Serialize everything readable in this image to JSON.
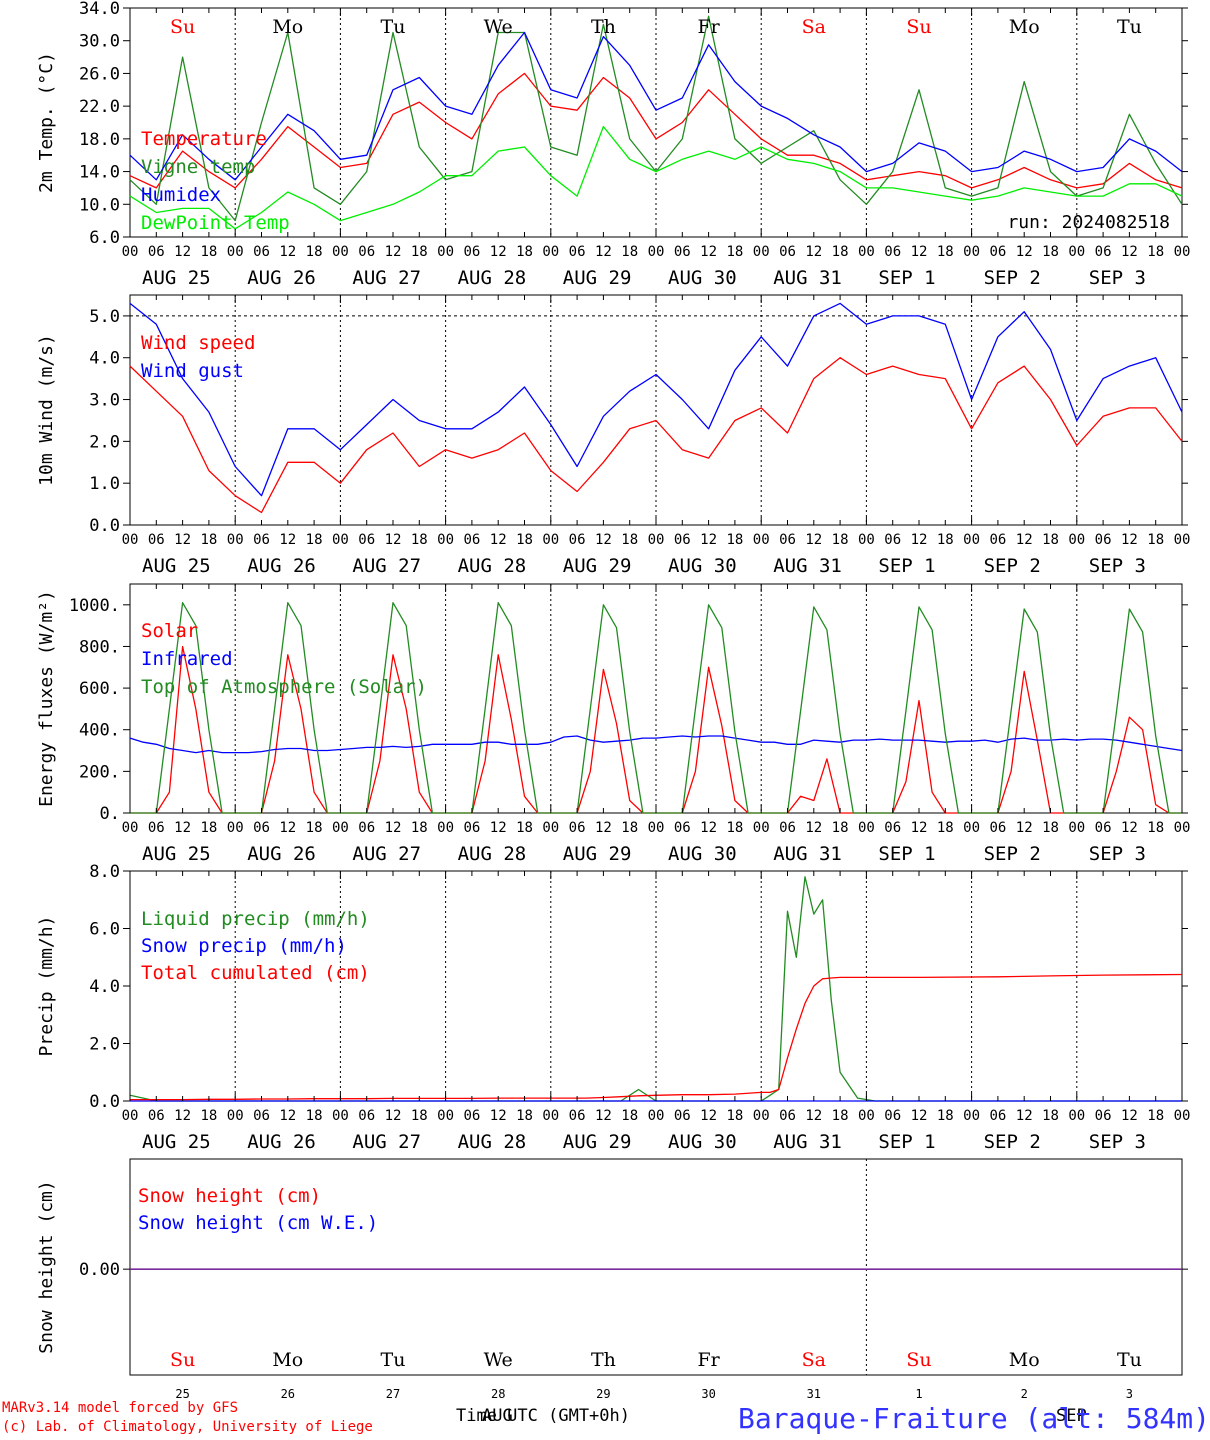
{
  "days": [
    "Su",
    "Mo",
    "Tu",
    "We",
    "Th",
    "Fr",
    "Sa",
    "Su",
    "Mo",
    "Tu"
  ],
  "day_colors": [
    "#ff0000",
    "#000000",
    "#000000",
    "#000000",
    "#000000",
    "#000000",
    "#ff0000",
    "#ff0000",
    "#000000",
    "#000000"
  ],
  "date_labels": [
    "AUG 25",
    "AUG 26",
    "AUG 27",
    "AUG 28",
    "AUG 29",
    "AUG 30",
    "AUG 31",
    "SEP  1",
    "SEP  2",
    "SEP  3"
  ],
  "hour_ticks": [
    "00",
    "06",
    "12",
    "18"
  ],
  "end_hour_tick": "00",
  "bottom_day_numbers": [
    "25",
    "26",
    "27",
    "28",
    "29",
    "30",
    "31",
    "1",
    "2",
    "3"
  ],
  "footer": {
    "model_line1": "MARv3.14 model forced by GFS",
    "model_line2": "(c) Lab. of Climatology, University of Liege",
    "time_label": "Time UTC (GMT+0h)",
    "overlap_aug": "AUG",
    "overlap_sep": "SEP",
    "station": "Baraque-Fraiture (alt: 584m)"
  },
  "chart_data": [
    {
      "id": "temp",
      "type": "line",
      "ylabel": "2m Temp. (°C)",
      "ylim": [
        6.0,
        34.0
      ],
      "yticks": [
        "6.0",
        "10.0",
        "14.0",
        "18.0",
        "22.0",
        "26.0",
        "30.0",
        "34.0"
      ],
      "run_label": "run: 2024082518",
      "x_hours": [
        0,
        6,
        12,
        18,
        24,
        30,
        36,
        42,
        48,
        54,
        60,
        66,
        72,
        78,
        84,
        90,
        96,
        102,
        108,
        114,
        120,
        126,
        132,
        138,
        144,
        150,
        156,
        162,
        168,
        174,
        180,
        186,
        192,
        198,
        204,
        210,
        216,
        222,
        228,
        234,
        240
      ],
      "series": [
        {
          "name": "Temperature",
          "color": "#ff0000",
          "values": [
            13.5,
            12.0,
            16.5,
            14.0,
            12.0,
            15.5,
            19.5,
            17.0,
            14.5,
            15.0,
            21.0,
            22.5,
            20.0,
            18.0,
            23.5,
            26.0,
            22.0,
            21.5,
            25.5,
            23.0,
            18.0,
            20.0,
            24.0,
            21.0,
            18.0,
            16.0,
            16.0,
            15.0,
            13.0,
            13.5,
            14.0,
            13.5,
            12.0,
            13.0,
            14.5,
            13.0,
            12.0,
            12.5,
            15.0,
            13.0,
            12.0
          ]
        },
        {
          "name": "Vigne temp",
          "color": "#228b22",
          "values": [
            13.0,
            10.0,
            28.0,
            12.0,
            8.0,
            20.0,
            31.0,
            12.0,
            10.0,
            14.0,
            31.0,
            17.0,
            13.0,
            14.0,
            31.0,
            31.0,
            17.0,
            16.0,
            32.0,
            18.0,
            14.0,
            18.0,
            33.0,
            18.0,
            15.0,
            17.0,
            19.0,
            13.0,
            10.0,
            14.0,
            24.0,
            12.0,
            11.0,
            12.0,
            25.0,
            14.0,
            11.0,
            12.0,
            21.0,
            15.0,
            10.0
          ]
        },
        {
          "name": "Humidex",
          "color": "#0000ff",
          "values": [
            16.0,
            13.0,
            18.5,
            15.5,
            13.0,
            17.0,
            21.0,
            19.0,
            15.5,
            16.0,
            24.0,
            25.5,
            22.0,
            21.0,
            27.0,
            31.0,
            24.0,
            23.0,
            30.5,
            27.0,
            21.5,
            23.0,
            29.5,
            25.0,
            22.0,
            20.5,
            18.5,
            17.0,
            14.0,
            15.0,
            17.5,
            16.5,
            14.0,
            14.5,
            16.5,
            15.5,
            14.0,
            14.5,
            18.0,
            16.5,
            14.0
          ]
        },
        {
          "name": "DewPoint Temp",
          "color": "#00ee00",
          "values": [
            11.0,
            9.0,
            9.5,
            9.5,
            7.0,
            9.0,
            11.5,
            10.0,
            8.0,
            9.0,
            10.0,
            11.5,
            13.5,
            13.5,
            16.5,
            17.0,
            13.5,
            11.0,
            19.5,
            15.5,
            14.0,
            15.5,
            16.5,
            15.5,
            17.0,
            15.5,
            15.0,
            14.0,
            12.0,
            12.0,
            11.5,
            11.0,
            10.5,
            11.0,
            12.0,
            11.5,
            11.0,
            11.0,
            12.5,
            12.5,
            11.0
          ]
        }
      ]
    },
    {
      "id": "wind",
      "type": "line",
      "ylabel": "10m Wind (m/s)",
      "ylim": [
        0.0,
        5.5
      ],
      "yticks": [
        "0.0",
        "1.0",
        "2.0",
        "3.0",
        "4.0",
        "5.0"
      ],
      "ref_line": 5.0,
      "x_hours": [
        0,
        6,
        12,
        18,
        24,
        30,
        36,
        42,
        48,
        54,
        60,
        66,
        72,
        78,
        84,
        90,
        96,
        102,
        108,
        114,
        120,
        126,
        132,
        138,
        144,
        150,
        156,
        162,
        168,
        174,
        180,
        186,
        192,
        198,
        204,
        210,
        216,
        222,
        228,
        234,
        240
      ],
      "series": [
        {
          "name": "Wind speed",
          "color": "#ff0000",
          "values": [
            3.8,
            3.2,
            2.6,
            1.3,
            0.7,
            0.3,
            1.5,
            1.5,
            1.0,
            1.8,
            2.2,
            1.4,
            1.8,
            1.6,
            1.8,
            2.2,
            1.3,
            0.8,
            1.5,
            2.3,
            2.5,
            1.8,
            1.6,
            2.5,
            2.8,
            2.2,
            3.5,
            4.0,
            3.6,
            3.8,
            3.6,
            3.5,
            2.3,
            3.4,
            3.8,
            3.0,
            1.9,
            2.6,
            2.8,
            2.8,
            2.0
          ]
        },
        {
          "name": "Wind gust",
          "color": "#0000ff",
          "values": [
            5.3,
            4.8,
            3.5,
            2.7,
            1.4,
            0.7,
            2.3,
            2.3,
            1.8,
            2.4,
            3.0,
            2.5,
            2.3,
            2.3,
            2.7,
            3.3,
            2.4,
            1.4,
            2.6,
            3.2,
            3.6,
            3.0,
            2.3,
            3.7,
            4.5,
            3.8,
            5.0,
            5.3,
            4.8,
            5.0,
            5.0,
            4.8,
            3.0,
            4.5,
            5.1,
            4.2,
            2.5,
            3.5,
            3.8,
            4.0,
            2.7
          ]
        }
      ]
    },
    {
      "id": "energy",
      "type": "line",
      "ylabel": "Energy fluxes (W/m²)",
      "ylim": [
        0,
        1100
      ],
      "yticks": [
        "0.",
        "200.",
        "400.",
        "600.",
        "800.",
        "1000."
      ],
      "x_hours": [
        0,
        3,
        6,
        9,
        12,
        15,
        18,
        21,
        24,
        27,
        30,
        33,
        36,
        39,
        42,
        45,
        48,
        51,
        54,
        57,
        60,
        63,
        66,
        69,
        72,
        75,
        78,
        81,
        84,
        87,
        90,
        93,
        96,
        99,
        102,
        105,
        108,
        111,
        114,
        117,
        120,
        123,
        126,
        129,
        132,
        135,
        138,
        141,
        144,
        147,
        150,
        153,
        156,
        159,
        162,
        165,
        168,
        171,
        174,
        177,
        180,
        183,
        186,
        189,
        192,
        195,
        198,
        201,
        204,
        207,
        210,
        213,
        216,
        219,
        222,
        225,
        228,
        231,
        234,
        237,
        240
      ],
      "series": [
        {
          "name": "Solar",
          "color": "#ff0000",
          "values": [
            0,
            0,
            0,
            100,
            800,
            500,
            100,
            0,
            0,
            0,
            0,
            250,
            760,
            500,
            100,
            0,
            0,
            0,
            0,
            250,
            760,
            500,
            100,
            0,
            0,
            0,
            0,
            250,
            760,
            450,
            80,
            0,
            0,
            0,
            0,
            200,
            690,
            430,
            60,
            0,
            0,
            0,
            0,
            200,
            700,
            420,
            60,
            0,
            0,
            0,
            0,
            80,
            60,
            260,
            0,
            0,
            0,
            0,
            0,
            150,
            540,
            100,
            0,
            0,
            0,
            0,
            0,
            200,
            680,
            350,
            0,
            0,
            0,
            0,
            0,
            200,
            460,
            400,
            40,
            0,
            0
          ]
        },
        {
          "name": "Infrared",
          "color": "#0000ff",
          "values": [
            360,
            340,
            330,
            310,
            300,
            290,
            300,
            290,
            290,
            290,
            295,
            305,
            310,
            310,
            300,
            300,
            305,
            310,
            315,
            315,
            320,
            315,
            320,
            330,
            330,
            330,
            330,
            340,
            340,
            330,
            330,
            330,
            340,
            365,
            370,
            350,
            340,
            345,
            350,
            360,
            360,
            365,
            370,
            365,
            370,
            370,
            360,
            350,
            340,
            340,
            330,
            330,
            350,
            345,
            340,
            350,
            350,
            355,
            350,
            350,
            350,
            345,
            340,
            345,
            345,
            350,
            340,
            355,
            360,
            350,
            350,
            355,
            350,
            355,
            355,
            350,
            340,
            330,
            320,
            310,
            300
          ]
        },
        {
          "name": "Top of Atmosphere (Solar)",
          "color": "#228b22",
          "values": [
            0,
            0,
            0,
            500,
            1010,
            900,
            400,
            0,
            0,
            0,
            0,
            500,
            1010,
            900,
            400,
            0,
            0,
            0,
            0,
            500,
            1010,
            900,
            400,
            0,
            0,
            0,
            0,
            500,
            1010,
            900,
            400,
            0,
            0,
            0,
            0,
            500,
            1000,
            890,
            390,
            0,
            0,
            0,
            0,
            500,
            1000,
            890,
            390,
            0,
            0,
            0,
            0,
            490,
            990,
            880,
            380,
            0,
            0,
            0,
            0,
            490,
            990,
            880,
            380,
            0,
            0,
            0,
            0,
            490,
            980,
            870,
            370,
            0,
            0,
            0,
            0,
            480,
            980,
            870,
            370,
            0,
            0
          ]
        }
      ]
    },
    {
      "id": "precip",
      "type": "line",
      "ylabel": "Precip (mm/h)",
      "ylim": [
        0.0,
        8.0
      ],
      "yticks": [
        "0.0",
        "2.0",
        "4.0",
        "6.0",
        "8.0"
      ],
      "x_hours": [
        0,
        6,
        12,
        18,
        24,
        30,
        36,
        42,
        48,
        54,
        60,
        66,
        72,
        78,
        84,
        90,
        96,
        100,
        104,
        108,
        112,
        116,
        120,
        126,
        132,
        138,
        144,
        146,
        148,
        150,
        152,
        154,
        156,
        158,
        160,
        162,
        166,
        170,
        180,
        198,
        210,
        222,
        240
      ],
      "series": [
        {
          "name": "Liquid precip (mm/h)",
          "color": "#228b22",
          "values": [
            0.2,
            0,
            0,
            0,
            0,
            0,
            0,
            0,
            0,
            0,
            0,
            0,
            0,
            0,
            0,
            0,
            0,
            0,
            0,
            0,
            0,
            0.4,
            0,
            0,
            0,
            0,
            0,
            0.2,
            0.4,
            6.6,
            5.0,
            7.8,
            6.5,
            7.0,
            3.5,
            1.0,
            0.1,
            0,
            0,
            0,
            0,
            0,
            0
          ]
        },
        {
          "name": "Snow precip (mm/h)",
          "color": "#0000ff",
          "values": [
            0,
            0,
            0,
            0,
            0,
            0,
            0,
            0,
            0,
            0,
            0,
            0,
            0,
            0,
            0,
            0,
            0,
            0,
            0,
            0,
            0,
            0,
            0,
            0,
            0,
            0,
            0,
            0,
            0,
            0,
            0,
            0,
            0,
            0,
            0,
            0,
            0,
            0,
            0,
            0,
            0,
            0,
            0
          ]
        },
        {
          "name": "Total cumulated (cm)",
          "color": "#ff0000",
          "values": [
            0.05,
            0.05,
            0.05,
            0.06,
            0.06,
            0.07,
            0.07,
            0.08,
            0.08,
            0.08,
            0.09,
            0.09,
            0.09,
            0.09,
            0.1,
            0.1,
            0.1,
            0.1,
            0.1,
            0.12,
            0.15,
            0.18,
            0.2,
            0.22,
            0.22,
            0.24,
            0.3,
            0.3,
            0.4,
            1.5,
            2.5,
            3.4,
            4.0,
            4.25,
            4.28,
            4.3,
            4.3,
            4.3,
            4.3,
            4.32,
            4.35,
            4.38,
            4.4
          ]
        }
      ]
    },
    {
      "id": "snow",
      "type": "line",
      "ylabel": "Snow height (cm)",
      "yticks": [
        "0.00"
      ],
      "x_hours": [
        0,
        240
      ],
      "series": [
        {
          "name": "Snow height (cm)",
          "color": "#ff0000",
          "values": [
            0,
            0
          ]
        },
        {
          "name": "Snow height (cm W.E.)",
          "color": "#0000ff",
          "values": [
            0,
            0
          ]
        }
      ]
    }
  ]
}
